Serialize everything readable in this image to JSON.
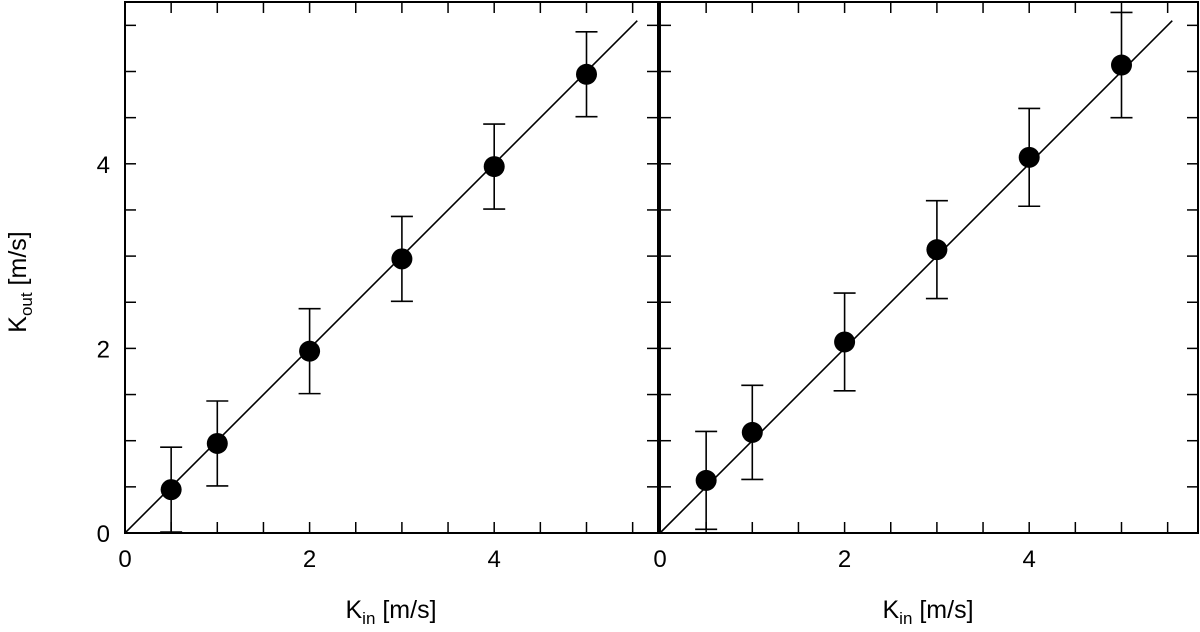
{
  "chart_data": [
    {
      "type": "scatter",
      "panel": "left",
      "xlabel": {
        "main": "K",
        "sub": "in",
        "unit": " [m/s]"
      },
      "ylabel": {
        "main": "K",
        "sub": "out",
        "unit": " [m/s]"
      },
      "xlim": [
        0,
        5.6
      ],
      "ylim": [
        0,
        5.6
      ],
      "x_ticks": [
        0,
        2,
        4
      ],
      "y_ticks": [
        0,
        2,
        4
      ],
      "x_tick_labels": [
        "0",
        "2",
        "4"
      ],
      "y_tick_labels": [
        "0",
        "2",
        "4"
      ],
      "minor_tick_step": 0.5,
      "reference_line": {
        "type": "identity",
        "from": 0,
        "to": 5.55
      },
      "series": [
        {
          "x": [
            0.5,
            1,
            2,
            3,
            4,
            5
          ],
          "y": [
            0.47,
            0.97,
            1.97,
            2.97,
            3.97,
            4.97
          ],
          "err": [
            0.46,
            0.46,
            0.46,
            0.46,
            0.46,
            0.46
          ]
        }
      ],
      "grid": false
    },
    {
      "type": "scatter",
      "panel": "right",
      "xlabel": {
        "main": "K",
        "sub": "in",
        "unit": " [m/s]"
      },
      "xlim": [
        0,
        5.6
      ],
      "ylim": [
        0,
        5.6
      ],
      "x_ticks": [
        0,
        2,
        4
      ],
      "x_tick_labels": [
        "0",
        "2",
        "4"
      ],
      "minor_tick_step": 0.5,
      "reference_line": {
        "type": "identity",
        "from": 0,
        "to": 5.55
      },
      "series": [
        {
          "x": [
            0.5,
            1,
            2,
            3,
            4,
            5
          ],
          "y": [
            0.57,
            1.09,
            2.07,
            3.07,
            4.07,
            5.07
          ],
          "err": [
            0.53,
            0.51,
            0.53,
            0.53,
            0.53,
            0.57
          ]
        }
      ],
      "grid": false
    }
  ]
}
